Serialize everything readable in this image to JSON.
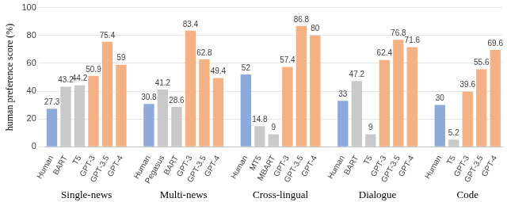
{
  "chart_data": {
    "type": "bar",
    "ylabel": "human preference score (%)",
    "ylim": [
      0,
      100
    ],
    "yticks": [
      0,
      20,
      40,
      60,
      80,
      100
    ],
    "grid": true,
    "data_labels": true,
    "groups": [
      {
        "label": "Single-news",
        "categories": [
          "Human",
          "BART",
          "T5",
          "GPT-3",
          "GPT-3.5",
          "GPT-4"
        ],
        "values": [
          27.3,
          43.2,
          44.2,
          50.9,
          75.4,
          59
        ],
        "colors": [
          "#8eaadb",
          "#c9c9c9",
          "#c9c9c9",
          "#f4b183",
          "#f4b183",
          "#f4b183"
        ]
      },
      {
        "label": "Multi-news",
        "categories": [
          "Human",
          "Pegasus",
          "BART",
          "GPT-3",
          "GPT-3.5",
          "GPT-4"
        ],
        "values": [
          30.8,
          41.2,
          28.6,
          83.4,
          62.8,
          49.4
        ],
        "colors": [
          "#8eaadb",
          "#c9c9c9",
          "#c9c9c9",
          "#f4b183",
          "#f4b183",
          "#f4b183"
        ]
      },
      {
        "label": "Cross-lingual",
        "categories": [
          "Human",
          "MT5",
          "MBART",
          "GPT-3",
          "GPT-3.5",
          "GPT-4"
        ],
        "values": [
          52,
          14.8,
          9,
          57.4,
          86.8,
          80
        ],
        "colors": [
          "#8eaadb",
          "#c9c9c9",
          "#c9c9c9",
          "#f4b183",
          "#f4b183",
          "#f4b183"
        ]
      },
      {
        "label": "Dialogue",
        "categories": [
          "Human",
          "BART",
          "T5",
          "GPT-3",
          "GPT-3.5",
          "GPT-4"
        ],
        "values": [
          33,
          47.2,
          9,
          62.4,
          76.8,
          71.6
        ],
        "colors": [
          "#8eaadb",
          "#c9c9c9",
          "#c9c9c9",
          "#f4b183",
          "#f4b183",
          "#f4b183"
        ]
      },
      {
        "label": "Code",
        "categories": [
          "Human",
          "T5",
          "GPT-3",
          "GPT-3.5",
          "GPT-4"
        ],
        "values": [
          30,
          5.2,
          39.6,
          55.6,
          69.6
        ],
        "colors": [
          "#8eaadb",
          "#c9c9c9",
          "#f4b183",
          "#f4b183",
          "#f4b183"
        ]
      }
    ]
  }
}
